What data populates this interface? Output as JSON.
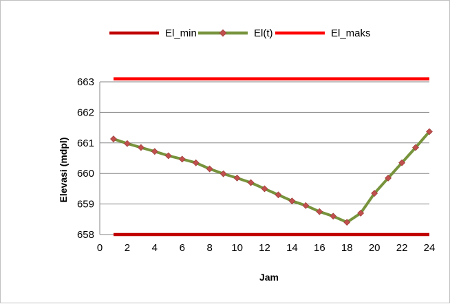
{
  "chart_data": {
    "type": "line",
    "xlabel": "Jam",
    "ylabel": "Elevasi (mdpl)",
    "xlim": [
      0,
      24
    ],
    "ylim": [
      658,
      663
    ],
    "x_ticks": [
      0,
      2,
      4,
      6,
      8,
      10,
      12,
      14,
      16,
      18,
      20,
      22,
      24
    ],
    "y_ticks": [
      658,
      659,
      660,
      661,
      662,
      663
    ],
    "grid": "horizontal",
    "legend_position": "top",
    "x": [
      1,
      2,
      3,
      4,
      5,
      6,
      7,
      8,
      9,
      10,
      11,
      12,
      13,
      14,
      15,
      16,
      17,
      18,
      19,
      20,
      21,
      22,
      23,
      24
    ],
    "series": [
      {
        "name": "El_min",
        "color": "#c00000",
        "values": [
          658,
          658,
          658,
          658,
          658,
          658,
          658,
          658,
          658,
          658,
          658,
          658,
          658,
          658,
          658,
          658,
          658,
          658,
          658,
          658,
          658,
          658,
          658,
          658
        ]
      },
      {
        "name": "El(t)",
        "color": "#77933c",
        "marker": "diamond",
        "marker_color": "#c0504d",
        "values": [
          661.13,
          660.98,
          660.85,
          660.72,
          660.58,
          660.47,
          660.35,
          660.15,
          659.99,
          659.85,
          659.7,
          659.5,
          659.3,
          659.1,
          658.95,
          658.75,
          658.6,
          658.4,
          658.7,
          659.35,
          659.85,
          660.35,
          660.85,
          661.37
        ]
      },
      {
        "name": "El_maks",
        "color": "#ff0000",
        "values": [
          663.1,
          663.1,
          663.1,
          663.1,
          663.1,
          663.1,
          663.1,
          663.1,
          663.1,
          663.1,
          663.1,
          663.1,
          663.1,
          663.1,
          663.1,
          663.1,
          663.1,
          663.1,
          663.1,
          663.1,
          663.1,
          663.1,
          663.1,
          663.1
        ]
      }
    ]
  }
}
